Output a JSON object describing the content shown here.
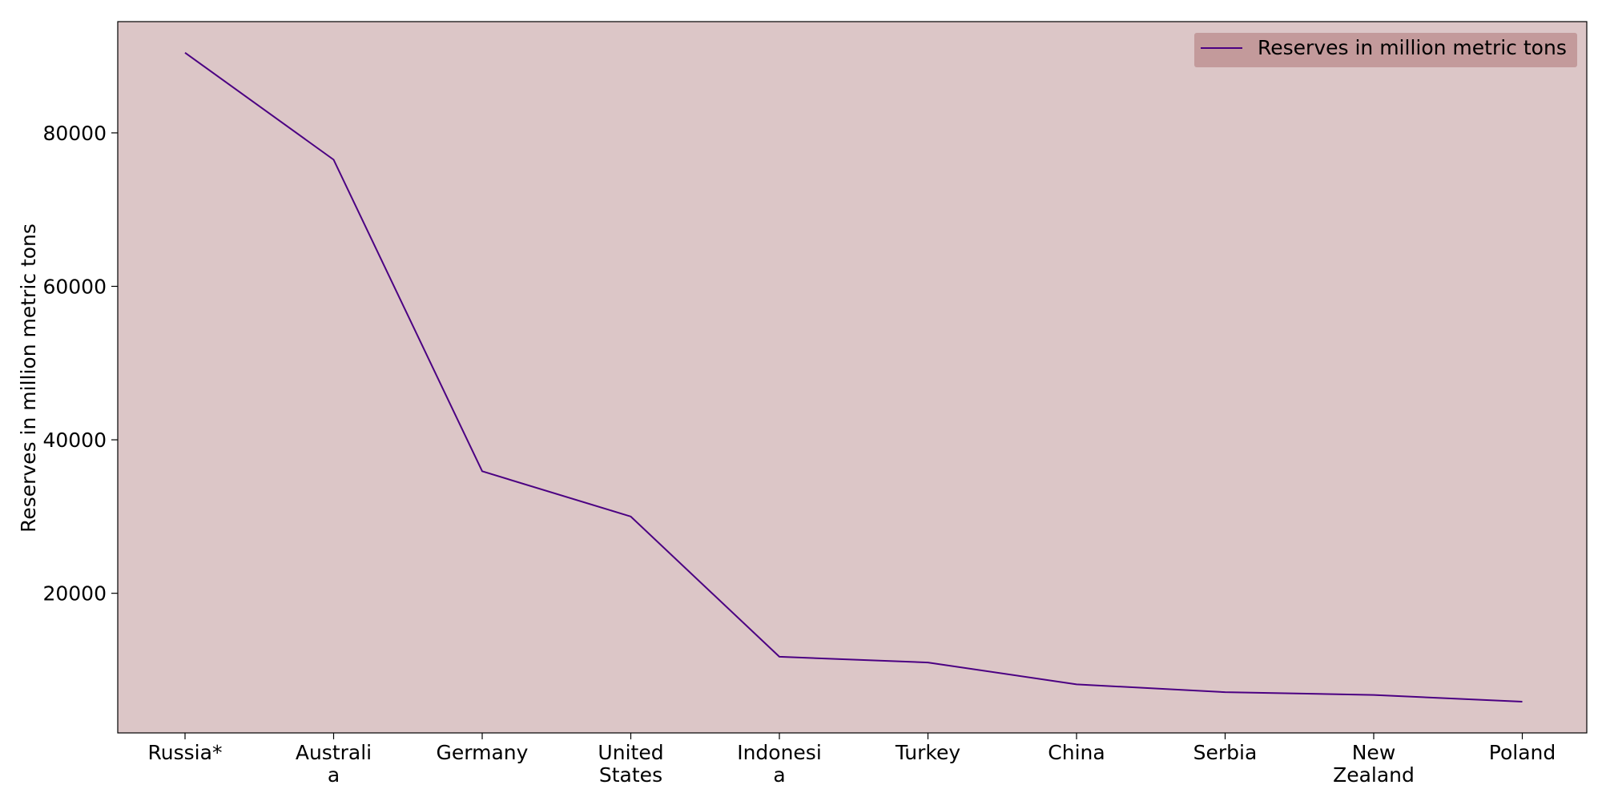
{
  "chart_data": {
    "type": "line",
    "title": "",
    "xlabel": "",
    "ylabel": "Reserves in million metric tons",
    "categories": [
      [
        "Russia*"
      ],
      [
        "Australi",
        "a"
      ],
      [
        "Germany"
      ],
      [
        "United",
        "States"
      ],
      [
        "Indonesi",
        "a"
      ],
      [
        "Turkey"
      ],
      [
        "China"
      ],
      [
        "Serbia"
      ],
      [
        "New",
        "Zealand"
      ],
      [
        "Poland"
      ]
    ],
    "series": [
      {
        "name": "Reserves in million metric tons",
        "values": [
          90447,
          76508,
          35900,
          30003,
          11728,
          10975,
          8128,
          7112,
          6750,
          5865
        ],
        "color": "#4b0082"
      }
    ],
    "ylim": [
      1800,
      94500
    ],
    "yticks": [
      20000,
      40000,
      60000,
      80000
    ],
    "legend_position": "top-right",
    "grid": false,
    "colors": {
      "plot_background": "#dcc6c7",
      "legend_background": "#c39a9b",
      "axis": "#000000"
    }
  }
}
